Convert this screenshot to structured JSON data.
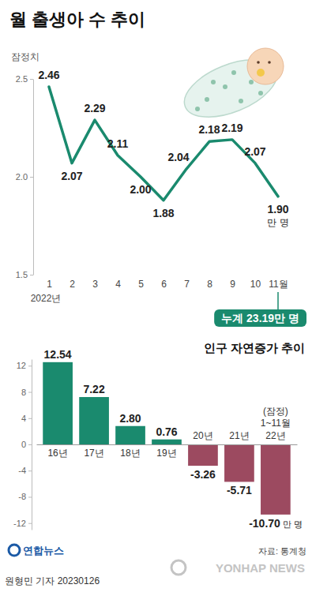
{
  "chart_data": [
    {
      "type": "line",
      "title": "월 출생아 수 추이",
      "subtitle": "잠정치",
      "categories": [
        "1",
        "2",
        "3",
        "4",
        "5",
        "6",
        "7",
        "8",
        "9",
        "10",
        "11월"
      ],
      "values": [
        2.46,
        2.07,
        2.29,
        2.11,
        2.0,
        1.88,
        2.04,
        2.18,
        2.19,
        2.07,
        1.9
      ],
      "value_labels": [
        "2.46",
        "2.07",
        "2.29",
        "2.11",
        "2.00",
        "1.88",
        "2.04",
        "2.18",
        "2.19",
        "2.07",
        "1.90"
      ],
      "unit": "만 명",
      "x_label": "2022년",
      "annotations": [
        "누계 23.19만 명"
      ],
      "color": "#1a8a6e",
      "ylim": [
        1.5,
        2.5
      ],
      "yticks": [
        1.5,
        {
          "value": 2,
          "label": "2.0"
        },
        2.5
      ],
      "grid": false,
      "data_labels": true
    },
    {
      "type": "bar",
      "title": "인구 자연증가 추이",
      "categories": [
        "16년",
        "17년",
        "18년",
        "19년",
        "20년",
        "21년",
        "22년"
      ],
      "values": [
        12.54,
        7.22,
        2.8,
        0.76,
        -3.26,
        -5.71,
        -10.7
      ],
      "value_labels": [
        "12.54",
        "7.22",
        "2.80",
        "0.76",
        "-3.26",
        "-5.71",
        "-10.70"
      ],
      "unit": "만 명",
      "annotations": [
        "(잠정)",
        "1~11월"
      ],
      "colors": [
        "#1a8a6e",
        "#1a8a6e",
        "#1a8a6e",
        "#1a8a6e",
        "#9c4a60",
        "#9c4a60",
        "#9c4a60"
      ],
      "ylim": [
        -13,
        13
      ],
      "yticks": [
        -12,
        -8,
        -4,
        0,
        4,
        8,
        12
      ],
      "grid": false,
      "data_labels": true,
      "source": "자료: 통계청"
    }
  ],
  "footer": {
    "logo": "연합뉴스",
    "byline": "원형민 기자 20230126",
    "watermark": "YONHAP NEWS"
  }
}
